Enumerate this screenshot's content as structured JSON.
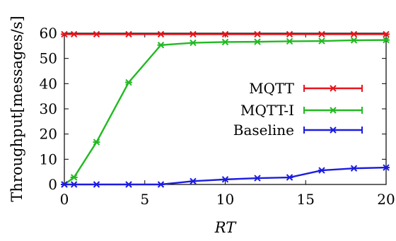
{
  "chart_data": {
    "type": "line",
    "title": "",
    "xlabel": "RT",
    "ylabel": "Throughput[messages/s]",
    "xlim": [
      0,
      20
    ],
    "ylim": [
      0,
      60
    ],
    "xticks": [
      0,
      5,
      10,
      15,
      20
    ],
    "yticks": [
      0,
      10,
      20,
      30,
      40,
      50,
      60
    ],
    "grid": false,
    "legend_position": "right",
    "series": [
      {
        "name": "MQTT",
        "color": "#e8141c",
        "x": [
          0,
          0.6,
          2,
          4,
          6,
          8,
          10,
          12,
          14,
          16,
          18,
          20
        ],
        "y": [
          59.6,
          59.6,
          59.6,
          59.6,
          59.6,
          59.6,
          59.6,
          59.6,
          59.6,
          59.6,
          59.6,
          59.6
        ]
      },
      {
        "name": "MQTT-I",
        "color": "#22b922",
        "x": [
          0,
          0.6,
          2,
          4,
          6,
          8,
          10,
          12,
          14,
          16,
          18,
          20
        ],
        "y": [
          0,
          2.8,
          16.8,
          40.5,
          55.3,
          56.2,
          56.5,
          56.6,
          56.8,
          56.9,
          57.2,
          57.3
        ]
      },
      {
        "name": "Baseline",
        "color": "#1c1ce0",
        "x": [
          0,
          0.6,
          2,
          4,
          6,
          8,
          10,
          12,
          14,
          16,
          18,
          20
        ],
        "y": [
          0,
          0,
          0,
          0,
          0,
          1.3,
          2,
          2.5,
          2.8,
          5.6,
          6.4,
          6.7
        ]
      }
    ]
  }
}
